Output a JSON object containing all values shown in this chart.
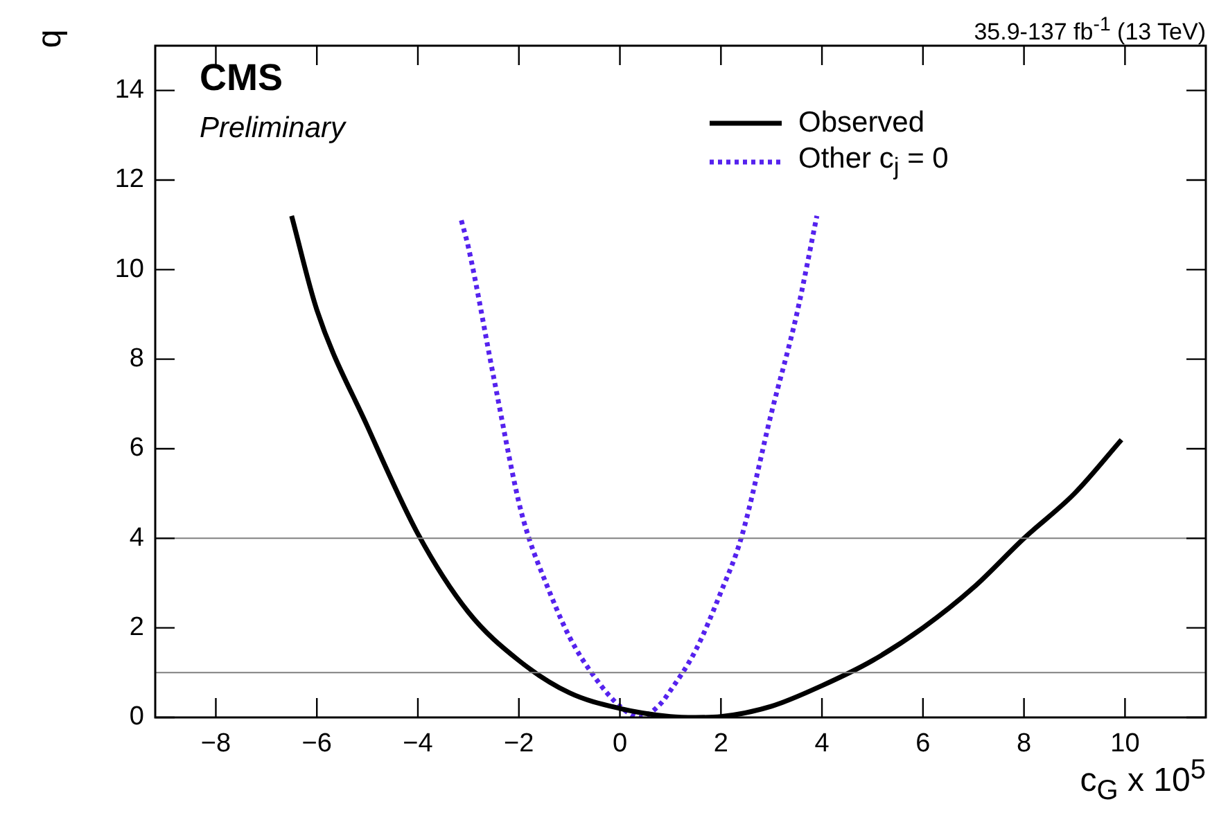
{
  "chart_data": {
    "type": "line",
    "xlabel": "c$_{G}$ x 10$^{5}$",
    "ylabel": "q",
    "annotations": [
      "35.9-137 fb$^{-1}$ (13 TeV)",
      "CMS",
      "Preliminary"
    ],
    "series": [
      {
        "name": "Observed",
        "color": "#000000",
        "line_style": "solid",
        "x": [
          -6.5,
          -6,
          -5,
          -4,
          -3,
          -2,
          -1,
          0,
          1,
          1.5,
          2,
          3,
          4,
          5,
          6,
          7,
          8,
          9,
          9.93
        ],
        "values": [
          11.2,
          9.1,
          6.5,
          4.1,
          2.35,
          1.27,
          0.55,
          0.2,
          0.02,
          0,
          0.02,
          0.25,
          0.71,
          1.27,
          2.0,
          2.9,
          4.0,
          5.0,
          6.2
        ]
      },
      {
        "name": "Other c$_{j}$ = 0",
        "color": "#5522ee",
        "line_style": "dotted",
        "x": [
          -3.14,
          -3,
          -2.5,
          -2,
          -1.8,
          -1.5,
          -1,
          -0.5,
          0,
          0.4,
          0.8,
          1,
          1.5,
          2,
          2.4,
          3,
          3.5,
          3.9
        ],
        "values": [
          11.1,
          10.5,
          7.6,
          4.8,
          4.0,
          3.1,
          1.8,
          0.9,
          0.25,
          0,
          0.3,
          0.6,
          1.5,
          2.8,
          4.0,
          6.8,
          9.0,
          11.2
        ]
      }
    ],
    "xlim": [
      -9.2,
      11.6
    ],
    "xticks": [
      -8,
      -6,
      -4,
      -2,
      0,
      2,
      4,
      6,
      8,
      10
    ],
    "ylim": [
      0,
      15
    ],
    "yticks": [
      0,
      2,
      4,
      6,
      8,
      10,
      12,
      14
    ],
    "ref_lines": [
      {
        "axis": "y",
        "value": 4,
        "color": "#808080"
      },
      {
        "axis": "y",
        "value": 1,
        "color": "#808080"
      }
    ],
    "grid": false,
    "legend": "top right",
    "marker": "none"
  }
}
